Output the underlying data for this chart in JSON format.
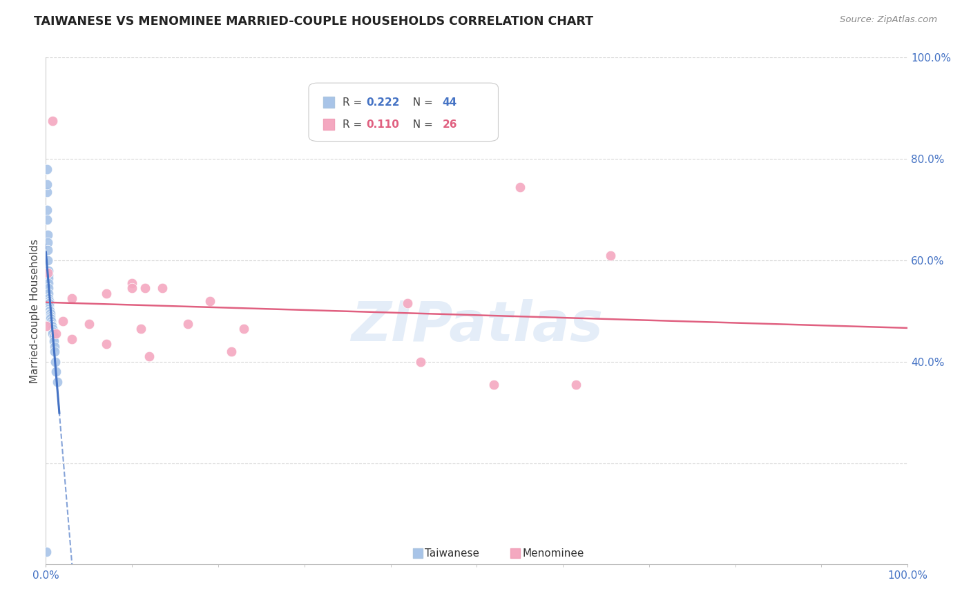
{
  "title": "TAIWANESE VS MENOMINEE MARRIED-COUPLE HOUSEHOLDS CORRELATION CHART",
  "source": "Source: ZipAtlas.com",
  "ylabel": "Married-couple Households",
  "watermark": "ZIPatlas",
  "taiwanese_R": 0.222,
  "taiwanese_N": 44,
  "menominee_R": 0.11,
  "menominee_N": 26,
  "taiwanese_color": "#a8c4e8",
  "taiwanese_line_color": "#4472c4",
  "menominee_color": "#f4a8c0",
  "menominee_line_color": "#e06080",
  "background_color": "#ffffff",
  "xlim": [
    0.0,
    1.0
  ],
  "ylim": [
    0.0,
    1.0
  ],
  "taiwanese_x": [
    0.0005,
    0.001,
    0.001,
    0.0015,
    0.0015,
    0.0015,
    0.002,
    0.002,
    0.002,
    0.002,
    0.0025,
    0.0025,
    0.003,
    0.003,
    0.003,
    0.003,
    0.003,
    0.0035,
    0.0035,
    0.004,
    0.004,
    0.004,
    0.004,
    0.0045,
    0.0045,
    0.005,
    0.005,
    0.005,
    0.0055,
    0.006,
    0.006,
    0.0065,
    0.007,
    0.007,
    0.0075,
    0.008,
    0.008,
    0.009,
    0.009,
    0.01,
    0.01,
    0.011,
    0.012,
    0.013
  ],
  "taiwanese_y": [
    0.025,
    0.78,
    0.735,
    0.75,
    0.7,
    0.68,
    0.65,
    0.635,
    0.62,
    0.6,
    0.58,
    0.57,
    0.565,
    0.555,
    0.545,
    0.535,
    0.525,
    0.52,
    0.515,
    0.515,
    0.51,
    0.505,
    0.5,
    0.5,
    0.495,
    0.495,
    0.49,
    0.485,
    0.485,
    0.48,
    0.475,
    0.47,
    0.47,
    0.465,
    0.465,
    0.46,
    0.455,
    0.45,
    0.44,
    0.43,
    0.42,
    0.4,
    0.38,
    0.36
  ],
  "menominee_x": [
    0.0005,
    0.002,
    0.008,
    0.012,
    0.02,
    0.03,
    0.03,
    0.05,
    0.07,
    0.07,
    0.1,
    0.1,
    0.11,
    0.115,
    0.12,
    0.135,
    0.165,
    0.19,
    0.215,
    0.23,
    0.42,
    0.435,
    0.52,
    0.55,
    0.615,
    0.655
  ],
  "menominee_y": [
    0.47,
    0.575,
    0.875,
    0.455,
    0.48,
    0.525,
    0.445,
    0.475,
    0.535,
    0.435,
    0.555,
    0.545,
    0.465,
    0.545,
    0.41,
    0.545,
    0.475,
    0.52,
    0.42,
    0.465,
    0.515,
    0.4,
    0.355,
    0.745,
    0.355,
    0.61
  ],
  "ytick_values": [
    0.0,
    0.2,
    0.4,
    0.6,
    0.8,
    1.0
  ],
  "ytick_labels": [
    "",
    "",
    "40.0%",
    "60.0%",
    "80.0%",
    "100.0%"
  ],
  "xtick_minor": [
    0.1,
    0.2,
    0.3,
    0.4,
    0.5,
    0.6,
    0.7,
    0.8,
    0.9
  ]
}
